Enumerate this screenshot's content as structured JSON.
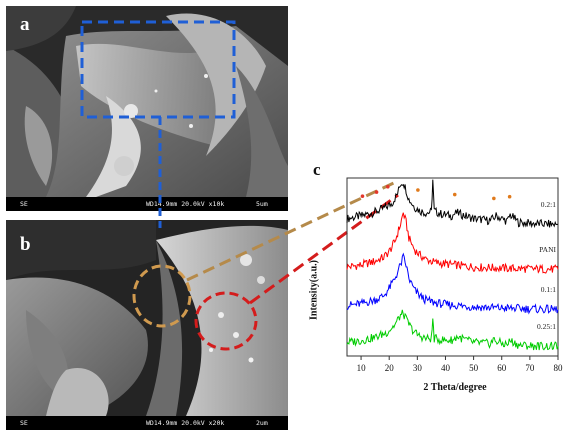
{
  "panels": {
    "a": {
      "label": "a",
      "bar": {
        "mode": "SE",
        "params": "WD14.9mm 20.0kV x10k",
        "scale": "5um"
      }
    },
    "b": {
      "label": "b",
      "bar": {
        "mode": "SE",
        "params": "WD14.9mm 20.0kV x20k",
        "scale": "2um"
      }
    }
  },
  "panel_c_label": "c",
  "colors": {
    "zoom_box": "#1f5fd6",
    "connector_tan": "#b58a4a",
    "connector_red": "#d41c1c",
    "marker_red": "#e3372b",
    "marker_orange": "#e07a1c"
  },
  "chart_data": {
    "type": "line",
    "xlabel": "2 Theta/degree",
    "ylabel": "Intensity(a.u.)",
    "xlim": [
      5,
      80
    ],
    "xticks": [
      10,
      20,
      30,
      40,
      50,
      60,
      70,
      80
    ],
    "series": [
      {
        "name": "0.2:1",
        "color": "#000000",
        "offset": 3.0,
        "x": [
          5,
          10,
          15,
          19,
          21,
          23,
          24,
          25,
          26,
          27,
          29,
          31,
          33,
          35,
          35.5,
          36,
          38,
          42,
          44,
          50,
          56,
          58,
          62,
          63,
          66,
          72,
          80
        ],
        "y": [
          0.55,
          0.62,
          0.72,
          0.85,
          0.95,
          1.2,
          1.45,
          1.5,
          1.3,
          1.05,
          0.85,
          0.75,
          0.7,
          0.72,
          1.55,
          0.75,
          0.68,
          0.62,
          0.7,
          0.55,
          0.5,
          0.62,
          0.48,
          0.65,
          0.45,
          0.42,
          0.4
        ]
      },
      {
        "name": "PANI",
        "color": "#ff0000",
        "offset": 2.0,
        "x": [
          5,
          10,
          15,
          18,
          20,
          22,
          24,
          25,
          26,
          27,
          29,
          31,
          33,
          36,
          40,
          45,
          50,
          60,
          70,
          80
        ],
        "y": [
          0.3,
          0.35,
          0.45,
          0.55,
          0.7,
          0.95,
          1.4,
          1.7,
          1.45,
          1.05,
          0.75,
          0.6,
          0.5,
          0.42,
          0.38,
          0.34,
          0.3,
          0.27,
          0.25,
          0.24
        ]
      },
      {
        "name": "0.1:1",
        "color": "#0000ff",
        "offset": 1.0,
        "x": [
          5,
          10,
          15,
          18,
          20,
          22,
          24,
          25,
          26,
          27,
          29,
          31,
          33,
          36,
          40,
          45,
          50,
          60,
          70,
          80
        ],
        "y": [
          0.3,
          0.35,
          0.45,
          0.55,
          0.75,
          1.0,
          1.35,
          1.55,
          1.35,
          1.0,
          0.7,
          0.55,
          0.45,
          0.38,
          0.33,
          0.3,
          0.27,
          0.24,
          0.22,
          0.2
        ]
      },
      {
        "name": "0.25:1",
        "color": "#00cc00",
        "offset": 0.0,
        "x": [
          5,
          10,
          15,
          19,
          22,
          24,
          25,
          26,
          28,
          30,
          33,
          35,
          35.5,
          36,
          40,
          43,
          44,
          50,
          56,
          57,
          60,
          62,
          63,
          66,
          72,
          80
        ],
        "y": [
          0.35,
          0.4,
          0.48,
          0.6,
          0.8,
          1.05,
          1.1,
          0.95,
          0.7,
          0.55,
          0.45,
          0.45,
          0.95,
          0.45,
          0.4,
          0.42,
          0.5,
          0.35,
          0.32,
          0.42,
          0.32,
          0.3,
          0.4,
          0.28,
          0.26,
          0.25
        ]
      }
    ],
    "peak_markers": [
      {
        "x": 10.5,
        "series": "0.2:1",
        "color": "red"
      },
      {
        "x": 15.5,
        "series": "0.2:1",
        "color": "red"
      },
      {
        "x": 19.5,
        "series": "0.2:1",
        "color": "red"
      },
      {
        "x": 25.2,
        "series": "0.2:1",
        "color": "red"
      },
      {
        "x": 24.2,
        "series": "0.2:1",
        "color": "orange"
      },
      {
        "x": 30.2,
        "series": "0.2:1",
        "color": "orange"
      },
      {
        "x": 35.6,
        "series": "0.2:1",
        "color": "orange"
      },
      {
        "x": 43.3,
        "series": "0.2:1",
        "color": "orange"
      },
      {
        "x": 57.2,
        "series": "0.2:1",
        "color": "orange"
      },
      {
        "x": 62.8,
        "series": "0.2:1",
        "color": "orange"
      }
    ]
  }
}
